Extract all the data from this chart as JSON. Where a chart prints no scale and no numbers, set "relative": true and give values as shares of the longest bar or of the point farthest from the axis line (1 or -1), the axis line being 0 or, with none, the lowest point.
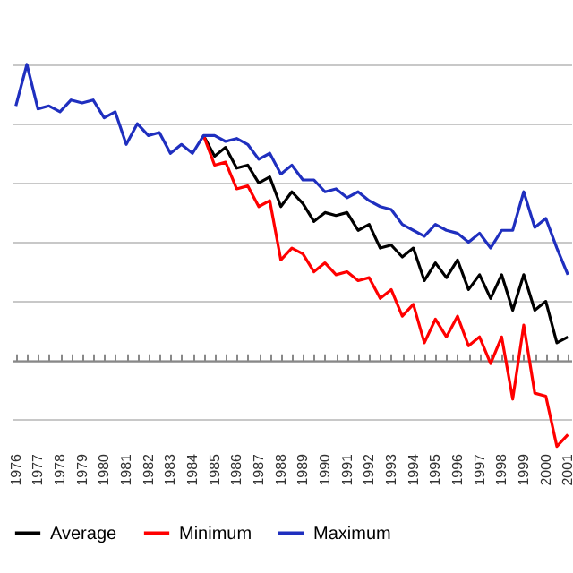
{
  "chart_data": {
    "type": "line",
    "relative": true,
    "grid": true,
    "legend": "bottom",
    "categories": [
      "1976",
      null,
      "1977",
      null,
      "1978",
      null,
      "1979",
      null,
      "1980",
      null,
      "1981",
      null,
      "1982",
      null,
      "1983",
      null,
      "1984",
      null,
      "1985",
      null,
      "1986",
      null,
      "1987",
      null,
      "1988",
      null,
      "1989",
      null,
      "1990",
      null,
      "1991",
      null,
      "1992",
      null,
      "1993",
      null,
      "1994",
      null,
      "1995",
      null,
      "1996",
      null,
      "1997",
      null,
      "1998",
      null,
      "1999",
      null,
      "2000",
      null,
      "2001"
    ],
    "series": [
      {
        "name": "Average",
        "color": "#000000",
        "values": [
          null,
          null,
          null,
          null,
          null,
          null,
          null,
          null,
          null,
          null,
          null,
          null,
          null,
          null,
          null,
          null,
          null,
          0.76,
          0.69,
          0.72,
          0.65,
          0.66,
          0.6,
          0.62,
          0.52,
          0.57,
          0.53,
          0.47,
          0.5,
          0.49,
          0.5,
          0.44,
          0.46,
          0.38,
          0.39,
          0.35,
          0.38,
          0.27,
          0.33,
          0.28,
          0.34,
          0.24,
          0.29,
          0.21,
          0.29,
          0.17,
          0.29,
          0.17,
          0.2,
          0.06,
          0.08
        ]
      },
      {
        "name": "Minimum",
        "color": "#ff0000",
        "values": [
          null,
          null,
          null,
          null,
          null,
          null,
          null,
          null,
          null,
          null,
          null,
          null,
          null,
          null,
          null,
          null,
          null,
          0.76,
          0.66,
          0.67,
          0.58,
          0.59,
          0.52,
          0.54,
          0.34,
          0.38,
          0.36,
          0.3,
          0.33,
          0.29,
          0.3,
          0.27,
          0.28,
          0.21,
          0.24,
          0.15,
          0.19,
          0.06,
          0.14,
          0.08,
          0.15,
          0.05,
          0.08,
          -0.01,
          0.08,
          -0.13,
          0.12,
          -0.11,
          -0.12,
          -0.29,
          -0.25
        ]
      },
      {
        "name": "Maximum",
        "color": "#1f2fbf",
        "values": [
          0.86,
          1.0,
          0.85,
          0.86,
          0.84,
          0.88,
          0.87,
          0.88,
          0.82,
          0.84,
          0.73,
          0.8,
          0.76,
          0.77,
          0.7,
          0.73,
          0.7,
          0.76,
          0.76,
          0.74,
          0.75,
          0.73,
          0.68,
          0.7,
          0.63,
          0.66,
          0.61,
          0.61,
          0.57,
          0.58,
          0.55,
          0.57,
          0.54,
          0.52,
          0.51,
          0.46,
          0.44,
          0.42,
          0.46,
          0.44,
          0.43,
          0.4,
          0.43,
          0.38,
          0.44,
          0.44,
          0.57,
          0.45,
          0.48,
          0.38,
          0.29
        ]
      }
    ]
  }
}
